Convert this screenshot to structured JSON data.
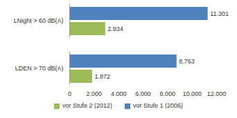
{
  "chart_data": {
    "type": "bar",
    "orientation": "horizontal",
    "categories": [
      "LNight > 60 dB(A)",
      "LDEN > 70 dB(A)"
    ],
    "series": [
      {
        "name": "vor Stufe 2 (2012)",
        "color": "#9bbb59",
        "values": [
          2934,
          1872
        ],
        "value_labels": [
          "2.934",
          "1.872"
        ]
      },
      {
        "name": "vor Stufe 1 (2006)",
        "color": "#4f81bd",
        "values": [
          11301,
          8763
        ],
        "value_labels": [
          "11.301",
          "8.763"
        ]
      }
    ],
    "xlim": [
      0,
      12000
    ],
    "xticks": [
      0,
      {
        "value": 2000,
        "label": "2.000"
      },
      {
        "value": 4000,
        "label": "4.000"
      },
      {
        "value": 6000,
        "label": "6.000"
      },
      {
        "value": 8000,
        "label": "8.000"
      },
      {
        "value": 10000,
        "label": "10.000"
      },
      {
        "value": 12000,
        "label": "12.000"
      }
    ],
    "grid": false,
    "data_labels": true,
    "legend": "bottom"
  }
}
